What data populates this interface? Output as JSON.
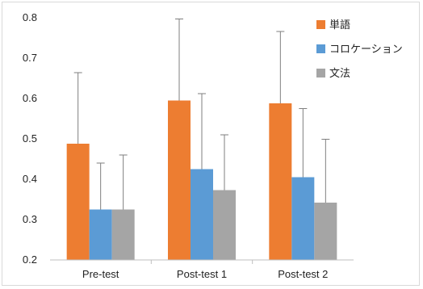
{
  "chart_data": {
    "type": "bar",
    "categories": [
      "Pre-test",
      "Post-test 1",
      "Post-test 2"
    ],
    "series": [
      {
        "name": "単語",
        "color": "#ED7D31",
        "values": [
          0.488,
          0.595,
          0.588
        ],
        "error": [
          0.176,
          0.202,
          0.178
        ]
      },
      {
        "name": "コロケーション",
        "color": "#5B9BD5",
        "values": [
          0.325,
          0.425,
          0.405
        ],
        "error": [
          0.115,
          0.187,
          0.17
        ]
      },
      {
        "name": "文法",
        "color": "#A5A5A5",
        "values": [
          0.325,
          0.373,
          0.342
        ],
        "error": [
          0.135,
          0.137,
          0.157
        ]
      }
    ],
    "ylim": [
      0.2,
      0.8
    ],
    "yticks": [
      "0.2",
      "0.3",
      "0.4",
      "0.5",
      "0.6",
      "0.7",
      "0.8"
    ],
    "legend_position": "top-right",
    "grid": false,
    "title": "",
    "xlabel": "",
    "ylabel": ""
  }
}
